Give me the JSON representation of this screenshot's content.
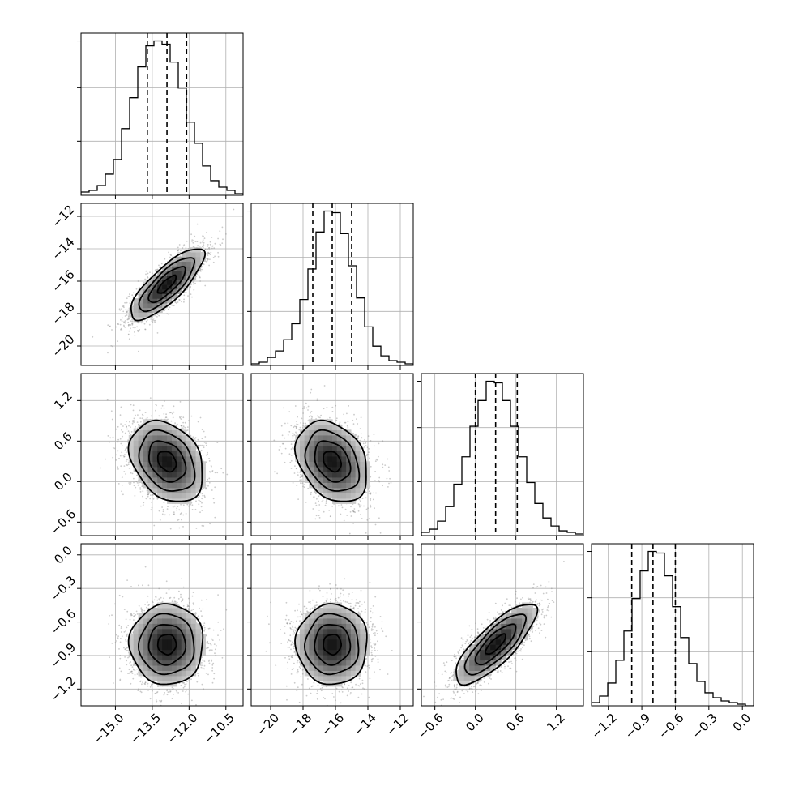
{
  "chart_data": {
    "type": "corner",
    "title": "",
    "grid": true,
    "colors": {
      "line": "#000000",
      "grid": "#b0b0b0",
      "points": "#8c8c8c",
      "background": "#ffffff"
    },
    "parameters": [
      {
        "label": "",
        "range": [
          -16.4,
          -9.8
        ],
        "ticks": [
          -15.0,
          -13.5,
          -12.0,
          -10.5
        ],
        "tick_labels": [
          "−15.0",
          "−13.5",
          "−12.0",
          "−10.5"
        ],
        "mean": -12.9,
        "sd": 0.75,
        "quantiles": [
          -13.7,
          -12.9,
          -12.1
        ],
        "histogram": {
          "bins": [
            -16.4,
            -16.07,
            -15.74,
            -15.41,
            -15.08,
            -14.75,
            -14.42,
            -14.09,
            -13.76,
            -13.43,
            -13.1,
            -12.77,
            -12.44,
            -12.11,
            -11.78,
            -11.45,
            -11.12,
            -10.79,
            -10.46,
            -10.13,
            -9.8
          ],
          "counts": [
            2,
            3,
            6,
            13,
            22,
            41,
            60,
            79,
            92,
            95,
            93,
            82,
            66,
            45,
            32,
            18,
            9,
            5,
            3,
            1
          ]
        }
      },
      {
        "label": "",
        "range": [
          -21.2,
          -11.2
        ],
        "ticks": [
          -20,
          -18,
          -16,
          -14,
          -12
        ],
        "tick_labels": [
          "−20",
          "−18",
          "−16",
          "−14",
          "−12"
        ],
        "mean": -16.2,
        "sd": 1.1,
        "quantiles": [
          -17.4,
          -16.2,
          -15.0
        ],
        "histogram": {
          "bins": [
            -21.2,
            -20.7,
            -20.2,
            -19.7,
            -19.2,
            -18.7,
            -18.2,
            -17.7,
            -17.2,
            -16.7,
            -16.2,
            -15.7,
            -15.2,
            -14.7,
            -14.2,
            -13.7,
            -13.2,
            -12.7,
            -12.2,
            -11.7,
            -11.2
          ],
          "counts": [
            1,
            2,
            5,
            9,
            16,
            26,
            41,
            60,
            83,
            96,
            95,
            82,
            62,
            42,
            24,
            12,
            6,
            3,
            2,
            1
          ]
        }
      },
      {
        "label": "",
        "range": [
          -0.8,
          1.6
        ],
        "ticks": [
          -0.6,
          0.0,
          0.6,
          1.2
        ],
        "tick_labels": [
          "−0.6",
          "0.0",
          "0.6",
          "1.2"
        ],
        "mean": 0.3,
        "sd": 0.3,
        "quantiles": [
          0.0,
          0.3,
          0.62
        ],
        "histogram": {
          "bins": [
            -0.8,
            -0.68,
            -0.56,
            -0.44,
            -0.32,
            -0.2,
            -0.08,
            0.04,
            0.16,
            0.28,
            0.4,
            0.52,
            0.64,
            0.76,
            0.88,
            1.0,
            1.12,
            1.24,
            1.36,
            1.48,
            1.6
          ],
          "counts": [
            2,
            4,
            9,
            18,
            32,
            49,
            68,
            84,
            96,
            95,
            84,
            68,
            49,
            33,
            20,
            11,
            6,
            3,
            2,
            1
          ]
        }
      },
      {
        "label": "",
        "range": [
          -1.35,
          0.1
        ],
        "ticks": [
          -1.2,
          -0.9,
          -0.6,
          -0.3,
          0.0
        ],
        "tick_labels": [
          "−1.2",
          "−0.9",
          "−0.6",
          "−0.3",
          "0.0"
        ],
        "mean": -0.8,
        "sd": 0.18,
        "quantiles": [
          -0.99,
          -0.8,
          -0.6
        ],
        "histogram": {
          "bins": [
            -1.35,
            -1.2775,
            -1.205,
            -1.1325,
            -1.06,
            -0.9875,
            -0.915,
            -0.8425,
            -0.77,
            -0.6975,
            -0.625,
            -0.5525,
            -0.48,
            -0.4075,
            -0.335,
            -0.2625,
            -0.19,
            -0.1175,
            -0.045,
            0.0275,
            0.1
          ],
          "counts": [
            2,
            6,
            14,
            28,
            46,
            66,
            83,
            95,
            94,
            80,
            61,
            42,
            26,
            15,
            8,
            5,
            3,
            2,
            1,
            0
          ]
        }
      }
    ],
    "pairs": [
      {
        "x_param": 0,
        "y_param": 1,
        "correlation": 0.8,
        "n_points": 2600
      },
      {
        "x_param": 0,
        "y_param": 2,
        "correlation": -0.3,
        "n_points": 2600
      },
      {
        "x_param": 1,
        "y_param": 2,
        "correlation": -0.3,
        "n_points": 2600
      },
      {
        "x_param": 0,
        "y_param": 3,
        "correlation": 0.0,
        "n_points": 2600
      },
      {
        "x_param": 1,
        "y_param": 3,
        "correlation": 0.0,
        "n_points": 2600
      },
      {
        "x_param": 2,
        "y_param": 3,
        "correlation": 0.8,
        "n_points": 2600
      }
    ],
    "contour_levels_sigma": [
      0.5,
      1.0,
      1.5,
      2.0
    ]
  }
}
